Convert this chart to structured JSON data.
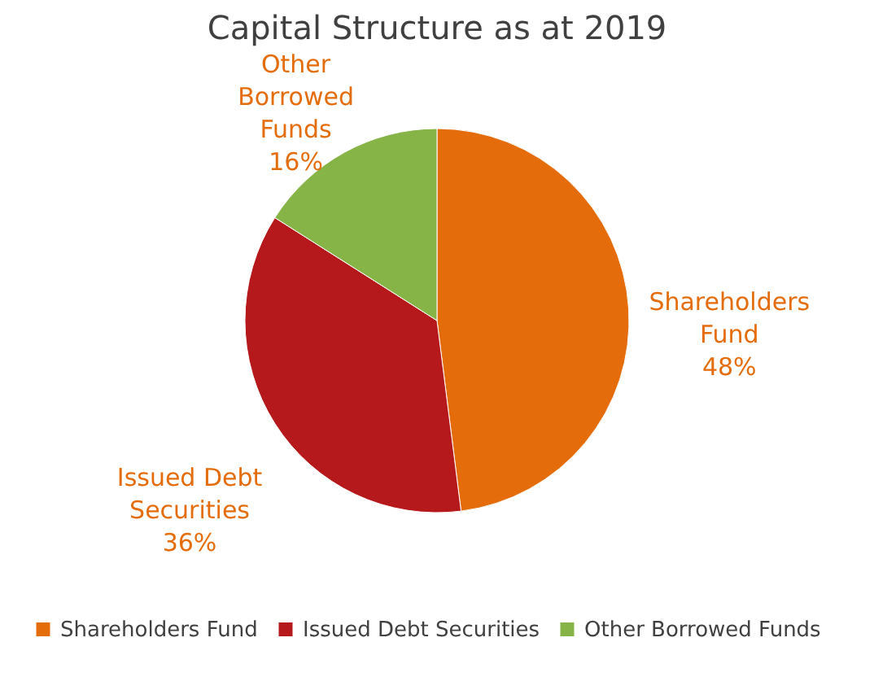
{
  "chart_data": {
    "type": "pie",
    "title": "Capital Structure as at 2019",
    "categories": [
      "Shareholders Fund",
      "Issued Debt Securities",
      "Other Borrowed Funds"
    ],
    "values": [
      48,
      36,
      16
    ],
    "colors": [
      "#e46c0a",
      "#b5191c",
      "#86b446"
    ],
    "value_labels": [
      "48%",
      "36%",
      "16%"
    ],
    "legend": "bottom"
  }
}
